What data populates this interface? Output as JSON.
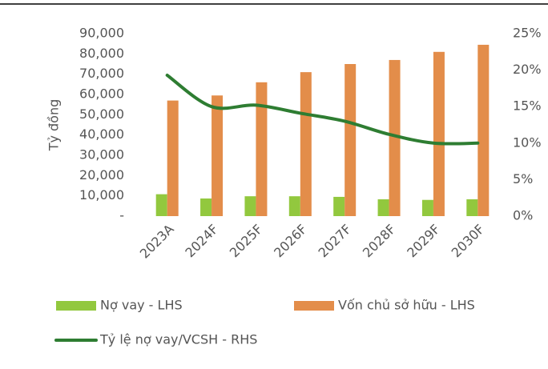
{
  "chart_data": {
    "type": "bar-line",
    "y_label": "Tỷ đồng",
    "categories": [
      "2023A",
      "2024F",
      "2025F",
      "2026F",
      "2027F",
      "2028F",
      "2029F",
      "2030F"
    ],
    "series": [
      {
        "name": "Nợ vay - LHS",
        "color": "#92c83e",
        "type": "bar",
        "values": [
          10800,
          8700,
          9800,
          9800,
          9500,
          8300,
          8000,
          8300
        ]
      },
      {
        "name": "Vốn chủ sở hữu - LHS",
        "color": "#e38d4a",
        "type": "bar",
        "values": [
          57000,
          59500,
          66000,
          71000,
          75000,
          77000,
          81000,
          84500
        ]
      },
      {
        "name": "Tỷ lệ nợ vay/VCSH - RHS",
        "color": "#2e7d32",
        "type": "line",
        "axis": "y2",
        "values": [
          19.3,
          15.0,
          15.2,
          14.1,
          13.0,
          11.2,
          10.0,
          10.0
        ]
      }
    ],
    "ylim": [
      0,
      90000
    ],
    "yticks": [
      {
        "value": 0,
        "label": "-"
      },
      {
        "value": 10000,
        "label": "10,000"
      },
      {
        "value": 20000,
        "label": "20,000"
      },
      {
        "value": 30000,
        "label": "30,000"
      },
      {
        "value": 40000,
        "label": "40,000"
      },
      {
        "value": 50000,
        "label": "50,000"
      },
      {
        "value": 60000,
        "label": "60,000"
      },
      {
        "value": 70000,
        "label": "70,000"
      },
      {
        "value": 80000,
        "label": "80,000"
      },
      {
        "value": 90000,
        "label": "90,000"
      }
    ],
    "y2lim": [
      0,
      25
    ],
    "y2ticks": [
      {
        "value": 0,
        "label": "0%"
      },
      {
        "value": 5,
        "label": "5%"
      },
      {
        "value": 10,
        "label": "10%"
      },
      {
        "value": 15,
        "label": "15%"
      },
      {
        "value": 20,
        "label": "20%"
      },
      {
        "value": 25,
        "label": "25%"
      }
    ],
    "grid": false
  }
}
